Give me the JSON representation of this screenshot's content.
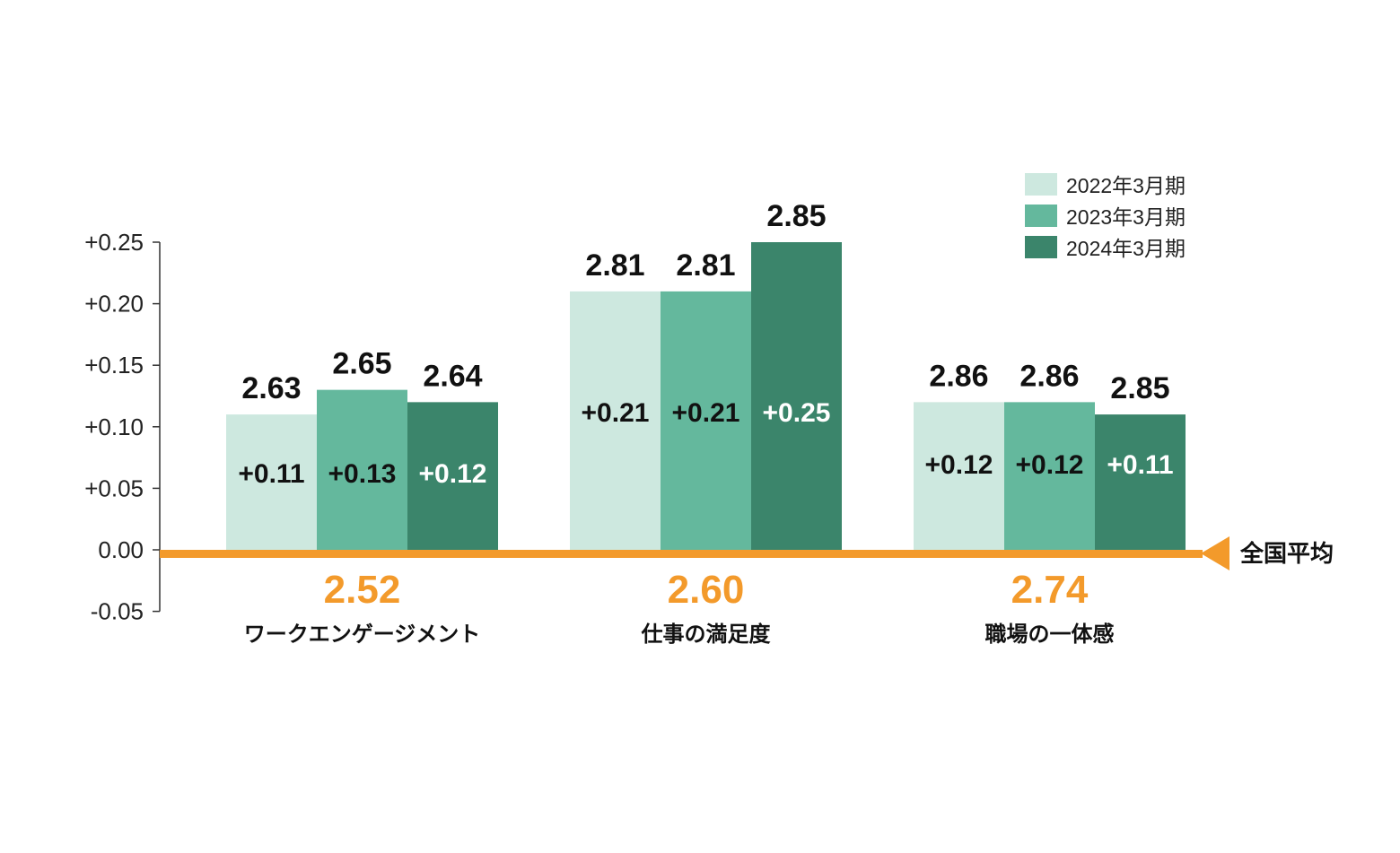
{
  "chart_data": {
    "type": "bar",
    "categories": [
      "ワークエンゲージメント",
      "仕事の満足度",
      "職場の一体感"
    ],
    "national_average_label": "全国平均",
    "national_average_values": [
      "2.52",
      "2.60",
      "2.74"
    ],
    "series": [
      {
        "name": "2022年3月期",
        "color": "#cde8df",
        "diff_color": "#111111",
        "values": [
          0.11,
          0.21,
          0.12
        ],
        "diff_labels": [
          "+0.11",
          "+0.21",
          "+0.12"
        ],
        "score_labels": [
          "2.63",
          "2.81",
          "2.86"
        ]
      },
      {
        "name": "2023年3月期",
        "color": "#64b89d",
        "diff_color": "#111111",
        "values": [
          0.13,
          0.21,
          0.12
        ],
        "diff_labels": [
          "+0.13",
          "+0.21",
          "+0.12"
        ],
        "score_labels": [
          "2.65",
          "2.81",
          "2.86"
        ]
      },
      {
        "name": "2024年3月期",
        "color": "#3b856b",
        "diff_color": "#ffffff",
        "values": [
          0.12,
          0.25,
          0.11
        ],
        "diff_labels": [
          "+0.12",
          "+0.25",
          "+0.11"
        ],
        "score_labels": [
          "2.64",
          "2.85",
          "2.85"
        ]
      }
    ],
    "y_ticks": [
      {
        "value": 0.25,
        "label": "+0.25"
      },
      {
        "value": 0.2,
        "label": "+0.20"
      },
      {
        "value": 0.15,
        "label": "+0.15"
      },
      {
        "value": 0.1,
        "label": "+0.10"
      },
      {
        "value": 0.05,
        "label": "+0.05"
      },
      {
        "value": 0.0,
        "label": "0.00"
      },
      {
        "value": -0.05,
        "label": "-0.05"
      }
    ],
    "ylim": [
      -0.05,
      0.25
    ],
    "grid": false,
    "legend_position": "top-right",
    "baseline_color": "#f39a2b"
  }
}
